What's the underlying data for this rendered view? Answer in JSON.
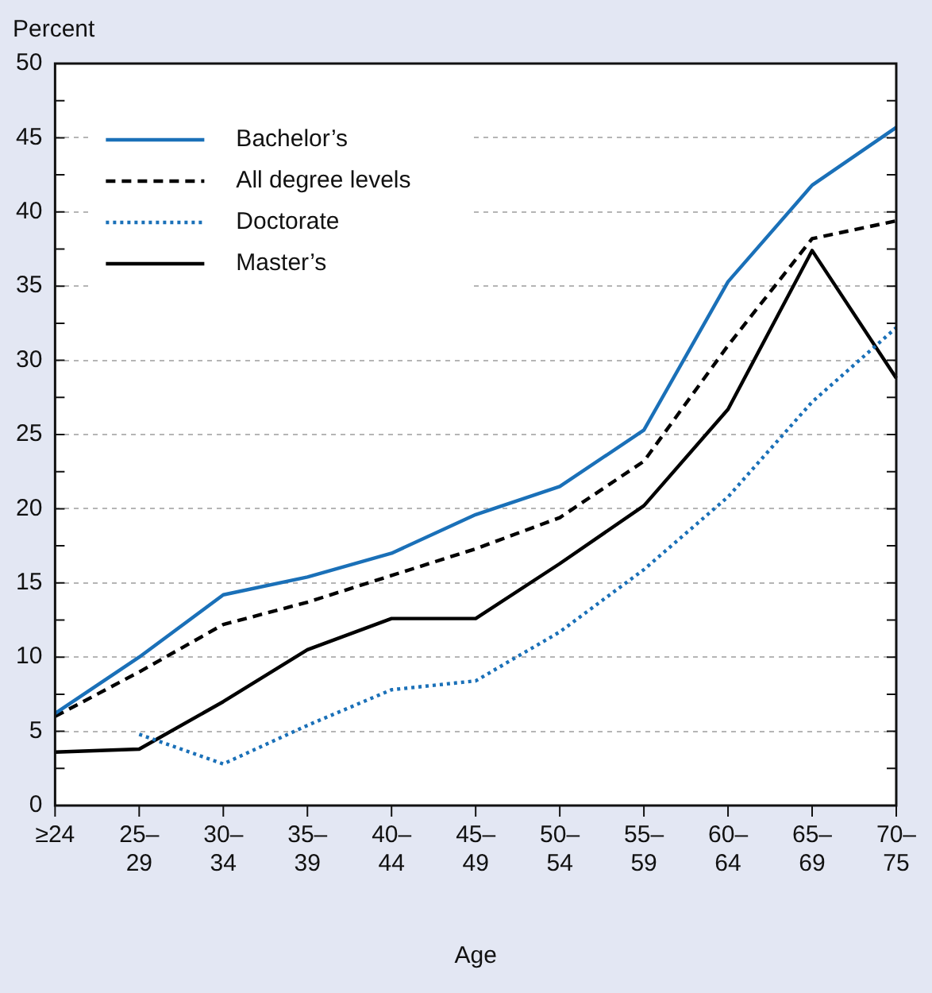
{
  "chart_data": {
    "type": "line",
    "ylabel": "Percent",
    "xlabel": "Age",
    "categories": [
      "≥24",
      "25–29",
      "30–34",
      "35–39",
      "40–44",
      "45–49",
      "50–54",
      "55–59",
      "60–64",
      "65–69",
      "70–75"
    ],
    "series": [
      {
        "name": "Bachelor’s",
        "color": "#1a70b8",
        "line_style": "solid",
        "values": [
          6.2,
          10,
          14.2,
          15.4,
          17,
          19.6,
          21.5,
          25.3,
          35.3,
          41.8,
          45.7
        ]
      },
      {
        "name": "All degree levels",
        "color": "#000000",
        "line_style": "dashed",
        "values": [
          6.0,
          9,
          12.2,
          13.7,
          15.5,
          17.3,
          19.4,
          23.2,
          31,
          38.2,
          39.4
        ]
      },
      {
        "name": "Doctorate",
        "color": "#1a70b8",
        "line_style": "dotted",
        "values": [
          null,
          4.8,
          2.8,
          5.4,
          7.8,
          8.4,
          11.7,
          15.9,
          20.8,
          27.2,
          32.2
        ]
      },
      {
        "name": "Master’s",
        "color": "#000000",
        "line_style": "solid",
        "values": [
          3.6,
          3.8,
          7,
          10.5,
          12.6,
          12.6,
          16.3,
          20.2,
          26.7,
          37.4,
          28.8
        ]
      }
    ],
    "ylim": [
      0,
      50
    ],
    "yticks": [
      0,
      {
        "value": 2.5,
        "label": null
      },
      5,
      {
        "value": 7.5,
        "label": null
      },
      10,
      {
        "value": 12.5,
        "label": null
      },
      15,
      {
        "value": 17.5,
        "label": null
      },
      20,
      {
        "value": 22.5,
        "label": null
      },
      25,
      {
        "value": 27.5,
        "label": null
      },
      30,
      {
        "value": 32.5,
        "label": null
      },
      35,
      {
        "value": 37.5,
        "label": null
      },
      40,
      {
        "value": 42.5,
        "label": null
      },
      45,
      {
        "value": 47.5,
        "label": null
      },
      50
    ],
    "grid": "y",
    "legend": "top left",
    "marker": "none"
  }
}
